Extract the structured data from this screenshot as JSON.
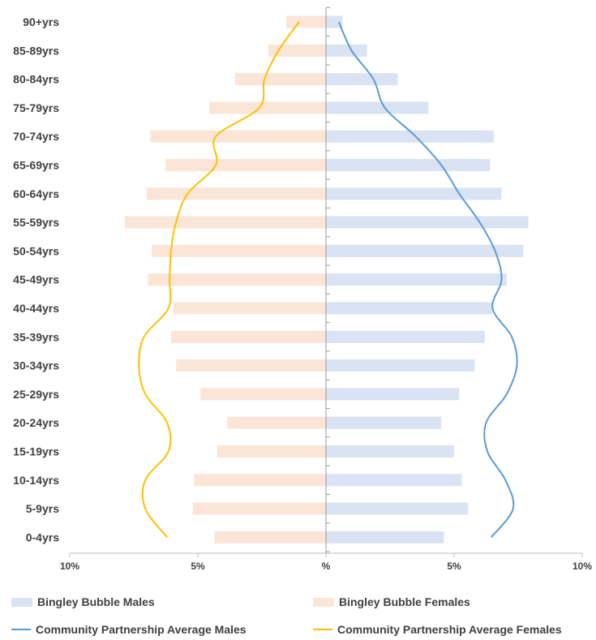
{
  "chart_data": {
    "type": "bar",
    "orientation": "horizontal-population-pyramid",
    "categories": [
      "0-4yrs",
      "5-9yrs",
      "10-14yrs",
      "15-19yrs",
      "20-24yrs",
      "25-29yrs",
      "30-34yrs",
      "35-39yrs",
      "40-44yrs",
      "45-49yrs",
      "50-54yrs",
      "55-59yrs",
      "60-64yrs",
      "65-69yrs",
      "70-74yrs",
      "75-79yrs",
      "80-84yrs",
      "85-89yrs",
      "90+yrs"
    ],
    "series": [
      {
        "name": "Bingley Bubble  Males",
        "kind": "bar",
        "side": "right",
        "color": "#dae3f3",
        "values": [
          4.6,
          5.55,
          5.3,
          5.0,
          4.5,
          5.2,
          5.8,
          6.2,
          6.5,
          7.05,
          7.7,
          7.9,
          6.85,
          6.4,
          6.55,
          4.0,
          2.8,
          1.6,
          0.65
        ]
      },
      {
        "name": "Bingley Bubble  Females",
        "kind": "bar",
        "side": "left",
        "color": "#fbe5d6",
        "values": [
          4.35,
          5.2,
          5.15,
          4.25,
          3.85,
          4.9,
          5.85,
          6.05,
          5.95,
          6.95,
          6.8,
          7.85,
          7.0,
          6.25,
          6.85,
          4.55,
          3.55,
          2.25,
          1.55
        ]
      },
      {
        "name": "Community Partnership Average Males",
        "kind": "line",
        "side": "right",
        "color": "#5b9bd5",
        "values": [
          6.45,
          7.3,
          7.0,
          6.3,
          6.25,
          7.05,
          7.45,
          7.25,
          6.5,
          6.85,
          6.6,
          6.0,
          5.2,
          4.5,
          3.5,
          2.3,
          1.85,
          1.0,
          0.5
        ]
      },
      {
        "name": "Community Partnership Average Females",
        "kind": "line",
        "side": "left",
        "color": "#ffc000",
        "values": [
          6.2,
          7.05,
          7.05,
          6.15,
          6.2,
          7.05,
          7.3,
          7.1,
          6.15,
          6.1,
          6.05,
          5.85,
          5.4,
          4.3,
          4.3,
          2.6,
          2.4,
          1.85,
          1.05
        ]
      }
    ],
    "x_ticks": [
      "10%",
      "5%",
      "%",
      "5%",
      "10%"
    ],
    "xlim": [
      -10,
      10
    ],
    "grid": false,
    "legend_position": "bottom"
  }
}
